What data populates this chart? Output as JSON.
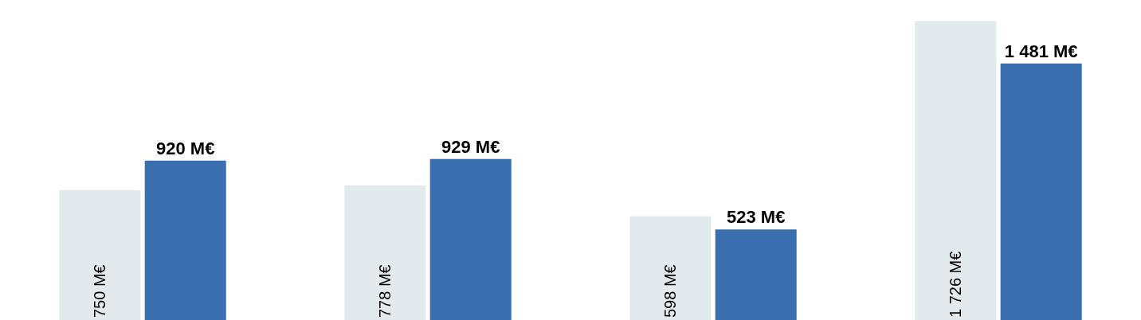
{
  "chart_data": {
    "type": "bar",
    "categories": [
      null,
      null,
      null,
      null
    ],
    "series": [
      {
        "color": "#e2eaee",
        "values": [
          750,
          778,
          598,
          1726
        ],
        "value_labels": [
          "750 M€",
          "778 M€",
          "598 M€",
          "1 726 M€"
        ]
      },
      {
        "color": "#3a6eae",
        "values": [
          920,
          929,
          523,
          1481
        ],
        "value_labels": [
          "920 M€",
          "929 M€",
          "523 M€",
          "1 481 M€"
        ]
      }
    ]
  }
}
